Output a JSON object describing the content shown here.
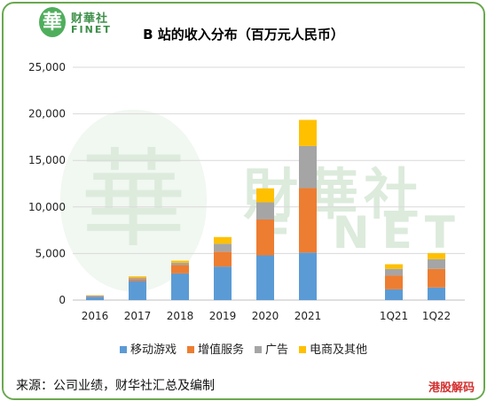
{
  "header": {
    "logo_cn": "财華社",
    "logo_en": "FINET",
    "logo_seal": "華"
  },
  "chart_data": {
    "type": "bar",
    "stacked": true,
    "title": "B 站的收入分布（百万元人民币）",
    "categories": [
      "2016",
      "2017",
      "2018",
      "2019",
      "2020",
      "2021",
      "1Q21",
      "1Q22"
    ],
    "series": [
      {
        "name": "移动游戏",
        "color": "#5b9bd5",
        "values": [
          360,
          2050,
          2860,
          3600,
          4800,
          5100,
          1150,
          1350
        ]
      },
      {
        "name": "增值服务",
        "color": "#ed7d31",
        "values": [
          80,
          200,
          900,
          1600,
          3850,
          6930,
          1500,
          2000
        ]
      },
      {
        "name": "广告",
        "color": "#a5a5a5",
        "values": [
          50,
          160,
          250,
          850,
          1850,
          4520,
          700,
          1050
        ]
      },
      {
        "name": "电商及其他",
        "color": "#ffc000",
        "values": [
          30,
          140,
          220,
          720,
          1500,
          2800,
          500,
          650
        ]
      }
    ],
    "ylim": [
      0,
      25000
    ],
    "yticks": [
      "0",
      "5,000",
      "10,000",
      "15,000",
      "20,000",
      "25,000"
    ],
    "grid": true,
    "legend_position": "bottom"
  },
  "footer": {
    "source": "来源：公司业绩，财华社汇总及编制",
    "brand": "港股解码"
  },
  "watermark": {
    "seal": "華",
    "cn": "財華社",
    "en": "FINET"
  }
}
